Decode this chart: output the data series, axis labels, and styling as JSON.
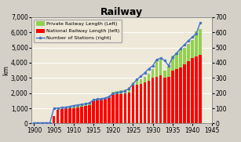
{
  "title": "Railway",
  "ylabel_left": "km",
  "xlim": [
    1899.3,
    1945.0
  ],
  "ylim_left": [
    0,
    7000
  ],
  "ylim_right": [
    0,
    700
  ],
  "yticks_left": [
    0,
    1000,
    2000,
    3000,
    4000,
    5000,
    6000,
    7000
  ],
  "yticks_right": [
    0,
    100,
    200,
    300,
    400,
    500,
    600,
    700
  ],
  "xticks": [
    1900,
    1905,
    1910,
    1915,
    1920,
    1925,
    1930,
    1935,
    1940,
    1945
  ],
  "background_color": "#ede8d8",
  "fig_color": "#d4d0c8",
  "grid_color": "#ffffff",
  "years": [
    1900,
    1901,
    1902,
    1903,
    1904,
    1905,
    1906,
    1907,
    1908,
    1909,
    1910,
    1911,
    1912,
    1913,
    1914,
    1915,
    1916,
    1917,
    1918,
    1919,
    1920,
    1921,
    1922,
    1923,
    1924,
    1925,
    1926,
    1927,
    1928,
    1929,
    1930,
    1931,
    1932,
    1933,
    1934,
    1935,
    1936,
    1937,
    1938,
    1939,
    1940,
    1941,
    1942
  ],
  "private_railway": [
    0,
    0,
    0,
    0,
    0,
    450,
    900,
    950,
    1000,
    1050,
    1100,
    1150,
    1200,
    1250,
    1300,
    1500,
    1550,
    1600,
    1650,
    1800,
    2100,
    2150,
    2200,
    2250,
    2400,
    2700,
    2800,
    2900,
    3050,
    3250,
    3600,
    4200,
    4200,
    3500,
    3800,
    4450,
    4650,
    4850,
    5000,
    5250,
    5500,
    6050,
    6200
  ],
  "national_railway": [
    0,
    0,
    0,
    0,
    0,
    500,
    900,
    950,
    980,
    1000,
    1020,
    1060,
    1100,
    1150,
    1200,
    1500,
    1550,
    1600,
    1600,
    1700,
    1900,
    1920,
    1950,
    2000,
    2050,
    2500,
    2550,
    2600,
    2700,
    2800,
    3000,
    3050,
    3150,
    3000,
    3050,
    3500,
    3600,
    3700,
    3900,
    4100,
    4300,
    4400,
    4500
  ],
  "stations": [
    5,
    5,
    5,
    5,
    5,
    100,
    102,
    104,
    108,
    112,
    118,
    122,
    126,
    130,
    135,
    155,
    160,
    163,
    168,
    178,
    200,
    203,
    208,
    215,
    230,
    260,
    290,
    310,
    335,
    360,
    380,
    420,
    430,
    415,
    380,
    435,
    462,
    492,
    518,
    545,
    568,
    592,
    662
  ],
  "private_color": "#92d050",
  "national_color": "#ff0000",
  "station_color": "#4472c4",
  "legend_private": "Private Railway Length (Left)",
  "legend_national": "National Railway Length (left)",
  "legend_stations": "Number of Stations (right)",
  "bar_width": 0.72
}
